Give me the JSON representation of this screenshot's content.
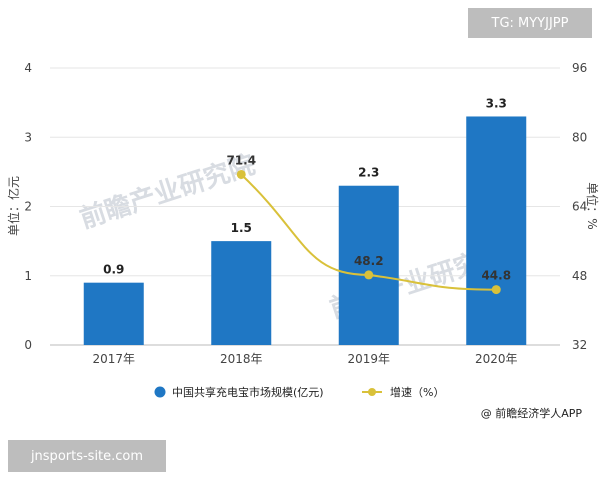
{
  "overlays": {
    "tag": "TG: MYYJJPP",
    "site": "jnsports-site.com",
    "watermark": "前瞻产业研究院"
  },
  "source": "@ 前瞻经济学人APP",
  "colors": {
    "bar": "#1f77c4",
    "line": "#d9c13a",
    "axis_text": "#444444",
    "grid": "#e6e6e6"
  },
  "chart_data": {
    "type": "bar",
    "categories": [
      "2017年",
      "2018年",
      "2019年",
      "2020年"
    ],
    "series": [
      {
        "name": "中国共享充电宝市场规模(亿元)",
        "type": "bar",
        "axis": "left",
        "values": [
          0.9,
          1.5,
          2.3,
          3.3
        ],
        "labels": [
          "0.9",
          "1.5",
          "2.3",
          "3.3"
        ]
      },
      {
        "name": "增速（%）",
        "type": "line",
        "axis": "right",
        "values": [
          null,
          71.4,
          48.2,
          44.8
        ],
        "labels": [
          "",
          "71.4",
          "48.2",
          "44.8"
        ]
      }
    ],
    "ylabel": "单位：亿元",
    "y2label": "单位：%",
    "ylim": [
      0,
      4
    ],
    "y2lim": [
      32,
      96
    ],
    "yticks": [
      "0",
      "1",
      "2",
      "3",
      "4"
    ],
    "y2ticks": [
      "32",
      "48",
      "64",
      "80",
      "96"
    ],
    "grid": true,
    "legend": "bottom"
  }
}
